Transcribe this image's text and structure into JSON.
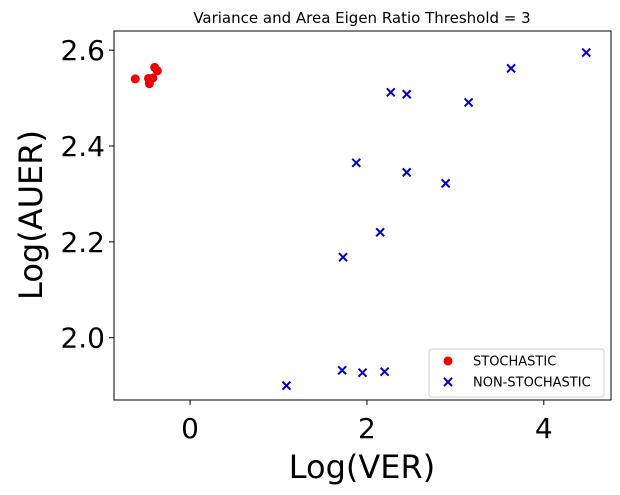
{
  "chart_data": {
    "type": "scatter",
    "title": "Variance and  Area Eigen Ratio Threshold = 3",
    "xlabel": "Log(VER)",
    "ylabel": "Log(AUER)",
    "xlim": [
      -0.86,
      4.76
    ],
    "ylim": [
      1.87,
      2.64
    ],
    "xticks": [
      0,
      2,
      4
    ],
    "xtick_labels": [
      "0",
      "2",
      "4"
    ],
    "yticks": [
      2.0,
      2.2,
      2.4,
      2.6
    ],
    "ytick_labels": [
      "2.0",
      "2.2",
      "2.4",
      "2.6"
    ],
    "grid": false,
    "legend_position": "lower-right",
    "series": [
      {
        "name": "STOCHASTIC",
        "marker": "circle",
        "color": "#ee0000",
        "points": [
          {
            "x": -0.62,
            "y": 2.54
          },
          {
            "x": -0.47,
            "y": 2.541
          },
          {
            "x": -0.46,
            "y": 2.53
          },
          {
            "x": -0.4,
            "y": 2.564
          },
          {
            "x": -0.37,
            "y": 2.557
          },
          {
            "x": -0.42,
            "y": 2.542
          }
        ]
      },
      {
        "name": "NON-STOCHASTIC",
        "marker": "x",
        "color": "#0000cc",
        "points": [
          {
            "x": 1.09,
            "y": 1.9
          },
          {
            "x": 1.72,
            "y": 1.932
          },
          {
            "x": 1.95,
            "y": 1.927
          },
          {
            "x": 2.2,
            "y": 1.929
          },
          {
            "x": 1.73,
            "y": 2.168
          },
          {
            "x": 2.15,
            "y": 2.22
          },
          {
            "x": 1.88,
            "y": 2.365
          },
          {
            "x": 2.27,
            "y": 2.512
          },
          {
            "x": 2.45,
            "y": 2.508
          },
          {
            "x": 2.45,
            "y": 2.345
          },
          {
            "x": 2.89,
            "y": 2.322
          },
          {
            "x": 3.15,
            "y": 2.491
          },
          {
            "x": 3.63,
            "y": 2.562
          },
          {
            "x": 4.48,
            "y": 2.595
          }
        ]
      }
    ]
  }
}
